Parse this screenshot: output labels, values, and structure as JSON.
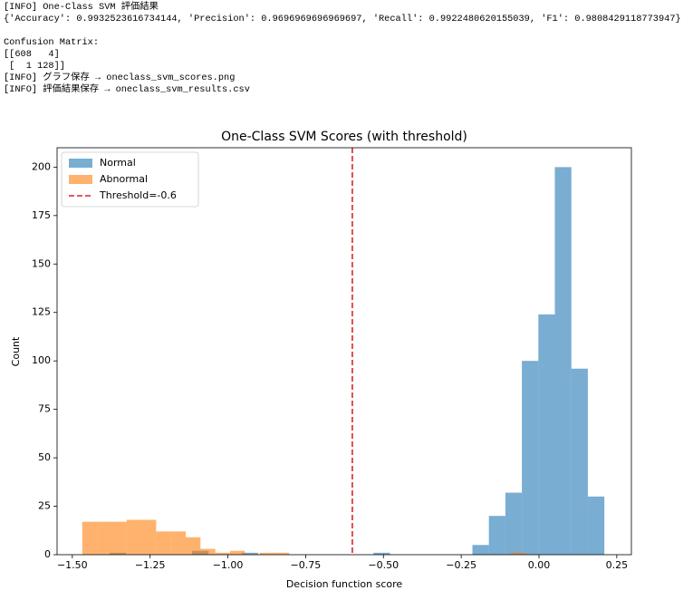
{
  "console": {
    "blocks": [
      [
        "[INFO] One-Class SVM 評価結果",
        "{'Accuracy': 0.9932523616734144, 'Precision': 0.9696969696969697, 'Recall': 0.9922480620155039, 'F1': 0.9808429118773947}"
      ],
      [
        "Confusion Matrix:",
        "[[608   4]",
        " [  1 128]]",
        "[INFO] グラフ保存 → oneclass_svm_scores.png",
        "[INFO] 評価結果保存 → oneclass_svm_results.csv"
      ]
    ]
  },
  "chart_data": {
    "type": "histogram",
    "title": "One-Class SVM Scores (with threshold)",
    "x_label": "Decision function score",
    "y_label": "Count",
    "alpha": 0.6,
    "legend": "upper left",
    "series": [
      {
        "name": "Normal",
        "color": "#1f77b4",
        "bins": [
          -1.38,
          -1.327,
          -1.274,
          -1.221,
          -1.168,
          -1.115,
          -1.062,
          -1.009,
          -0.956,
          -0.903,
          -0.85,
          -0.797,
          -0.744,
          -0.691,
          -0.638,
          -0.585,
          -0.532,
          -0.479,
          -0.426,
          -0.373,
          -0.32,
          -0.267,
          -0.214,
          -0.161,
          -0.108,
          -0.055,
          -0.002,
          0.051,
          0.104,
          0.157,
          0.21
        ],
        "values": [
          1,
          0,
          0,
          0,
          0,
          2,
          0,
          0,
          1,
          0,
          0,
          0,
          0,
          0,
          0,
          0,
          1,
          0,
          0,
          0,
          0,
          0,
          5,
          20,
          32,
          100,
          124,
          200,
          96,
          30
        ]
      },
      {
        "name": "Abnormal",
        "color": "#ff7f0e",
        "bins": [
          -1.468,
          -1.4205,
          -1.373,
          -1.3255,
          -1.278,
          -1.2305,
          -1.183,
          -1.1355,
          -1.088,
          -1.0405,
          -0.993,
          -0.9455,
          -0.898,
          -0.8505,
          -0.803,
          -0.7555,
          -0.708,
          -0.6605,
          -0.613,
          -0.5655,
          -0.518,
          -0.4705,
          -0.423,
          -0.3755,
          -0.328,
          -0.2805,
          -0.233,
          -0.1855,
          -0.138,
          -0.0905,
          -0.043
        ],
        "values": [
          17,
          17,
          17,
          18,
          18,
          12,
          12,
          9,
          3,
          1,
          2,
          0,
          1,
          1,
          0,
          0,
          0,
          0,
          0,
          0,
          0,
          0,
          0,
          0,
          0,
          0,
          0,
          0,
          0,
          1
        ]
      }
    ],
    "threshold": {
      "value": -0.6,
      "label": "Threshold=-0.6",
      "color": "#d62728"
    },
    "xlim": [
      -1.549,
      0.297
    ],
    "ylim": [
      0,
      210
    ],
    "xticks": [
      {
        "value": -1.5,
        "label": "−1.50"
      },
      {
        "value": -1.25,
        "label": "−1.25"
      },
      {
        "value": -1.0,
        "label": "−1.00"
      },
      {
        "value": -0.75,
        "label": "−0.75"
      },
      {
        "value": -0.5,
        "label": "−0.50"
      },
      {
        "value": -0.25,
        "label": "−0.25"
      },
      {
        "value": 0,
        "label": "0.00"
      },
      0.25
    ],
    "yticks": [
      0,
      25,
      50,
      75,
      100,
      125,
      150,
      175,
      200
    ]
  }
}
